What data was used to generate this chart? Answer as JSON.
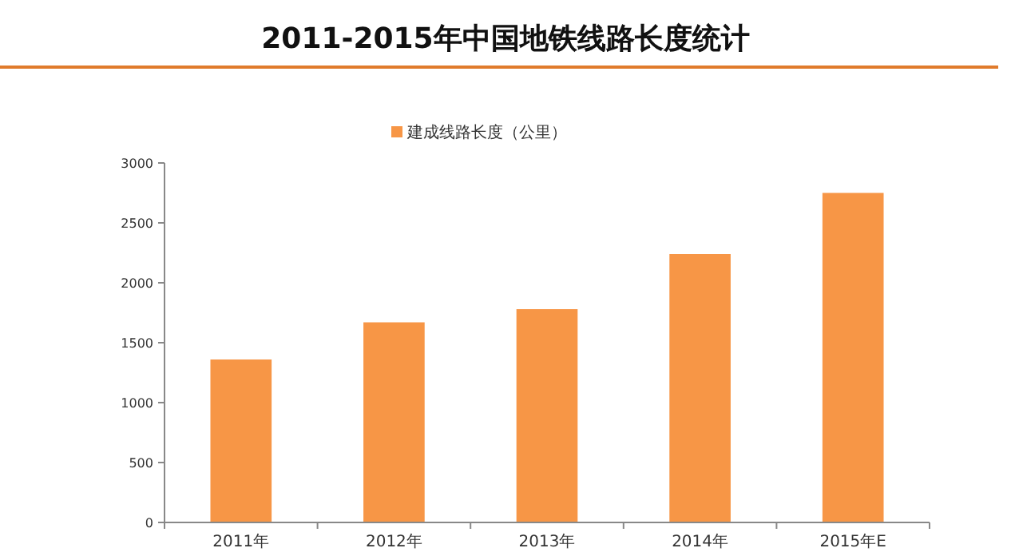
{
  "chart_data": {
    "type": "bar",
    "title": "2011-2015年中国地铁线路长度统计",
    "categories": [
      "2011年",
      "2012年",
      "2013年",
      "2014年",
      "2015年E"
    ],
    "series": [
      {
        "name": "建成线路长度（公里）",
        "color": "#f79646",
        "values": [
          1360,
          1670,
          1780,
          2240,
          2750
        ]
      }
    ],
    "ylim": [
      0,
      3000
    ],
    "yticks": [
      0,
      500,
      1000,
      1500,
      2000,
      2500,
      3000
    ],
    "grid": false,
    "legend": "top"
  }
}
